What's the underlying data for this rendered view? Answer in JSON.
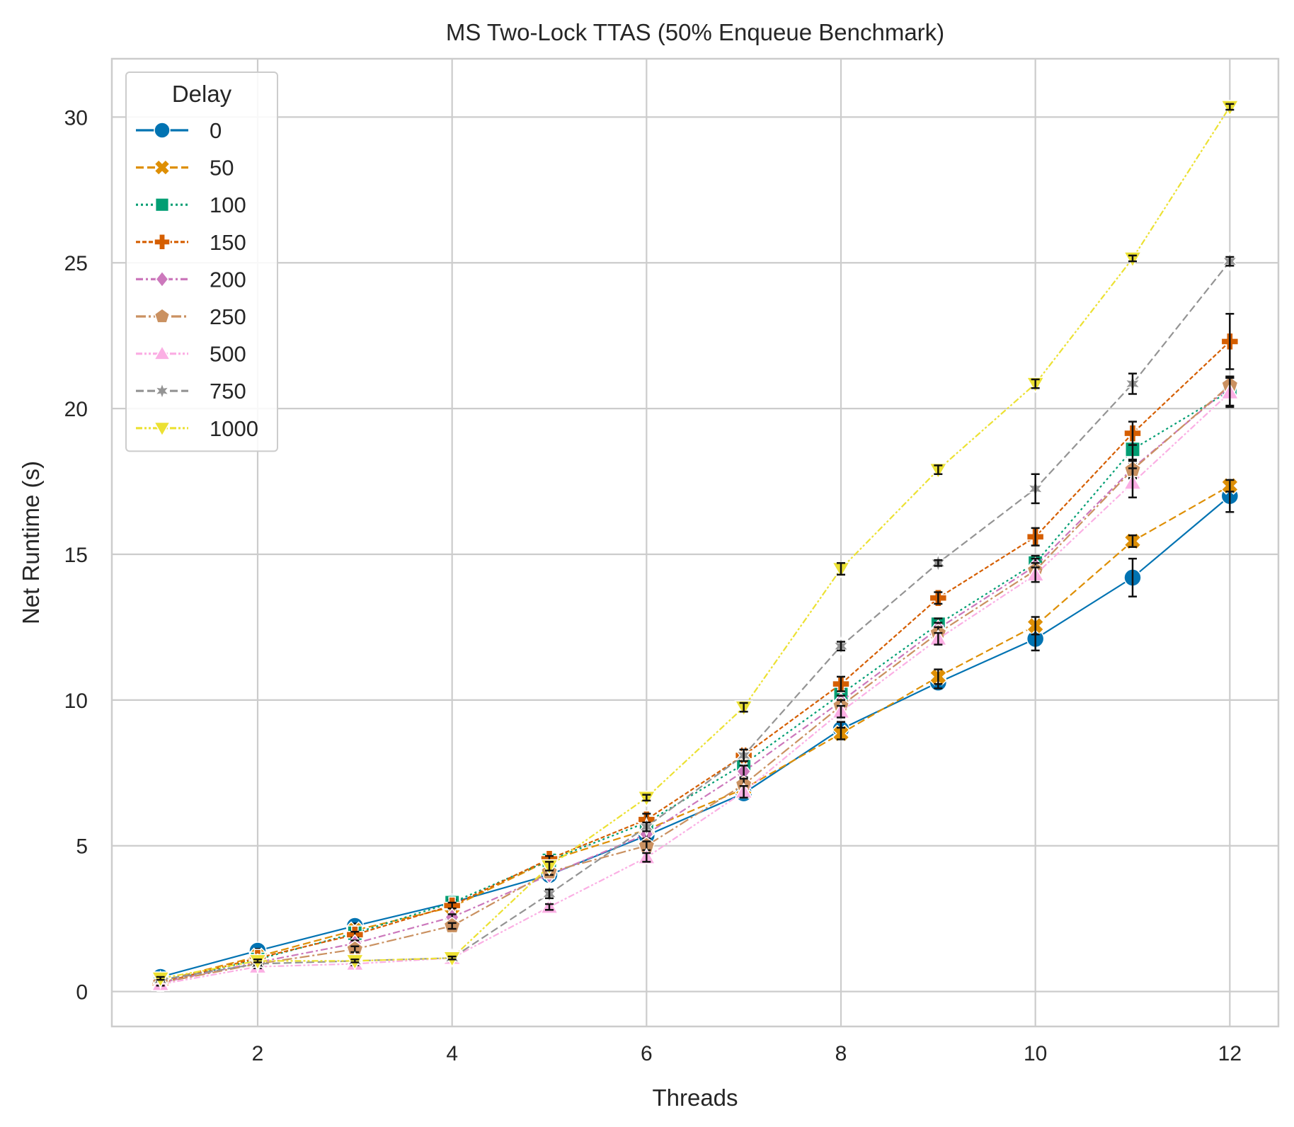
{
  "chart_data": {
    "type": "line",
    "title": "MS Two-Lock TTAS (50% Enqueue Benchmark)",
    "xlabel": "Threads",
    "ylabel": "Net Runtime (s)",
    "xlim": [
      0.5,
      12.5
    ],
    "ylim": [
      -1.2,
      32
    ],
    "xticks": [
      2,
      4,
      6,
      8,
      10,
      12
    ],
    "yticks": [
      0,
      5,
      10,
      15,
      20,
      25,
      30
    ],
    "grid": true,
    "legend": {
      "title": "Delay",
      "placement": "upper-left"
    },
    "x": [
      1,
      2,
      3,
      4,
      5,
      6,
      7,
      8,
      9,
      10,
      11,
      12
    ],
    "series": [
      {
        "name": "0",
        "color": "#0173b2",
        "marker": "circle",
        "dash": "solid",
        "values": [
          0.5,
          1.4,
          2.25,
          3.05,
          4.0,
          5.35,
          6.8,
          9.0,
          10.6,
          12.1,
          14.2,
          17.0
        ],
        "errors": [
          0.05,
          0.06,
          0.08,
          0.08,
          0.1,
          0.15,
          0.15,
          0.25,
          0.2,
          0.4,
          0.65,
          0.55
        ]
      },
      {
        "name": "50",
        "color": "#de8f05",
        "marker": "x",
        "dash": "dashed",
        "values": [
          0.35,
          1.2,
          2.1,
          2.9,
          4.5,
          5.55,
          6.95,
          8.85,
          10.8,
          12.55,
          15.45,
          17.35
        ],
        "errors": [
          0.05,
          0.05,
          0.08,
          0.1,
          0.1,
          0.15,
          0.2,
          0.2,
          0.25,
          0.3,
          0.2,
          0.2
        ]
      },
      {
        "name": "100",
        "color": "#029e73",
        "marker": "square",
        "dash": "dotted",
        "values": [
          0.3,
          1.1,
          2.0,
          3.05,
          4.5,
          5.8,
          7.8,
          10.2,
          12.6,
          14.7,
          18.6,
          20.6
        ],
        "errors": [
          0.05,
          0.05,
          0.08,
          0.1,
          0.1,
          0.15,
          0.15,
          0.2,
          0.2,
          0.25,
          0.5,
          0.5
        ]
      },
      {
        "name": "150",
        "color": "#d55e00",
        "marker": "plus",
        "dash": "densedash",
        "values": [
          0.3,
          1.15,
          1.95,
          2.95,
          4.55,
          5.9,
          8.1,
          10.55,
          13.5,
          15.6,
          19.15,
          22.3
        ],
        "errors": [
          0.05,
          0.05,
          0.1,
          0.1,
          0.1,
          0.2,
          0.2,
          0.25,
          0.2,
          0.3,
          0.4,
          0.95
        ]
      },
      {
        "name": "200",
        "color": "#cc78bc",
        "marker": "diamond",
        "dash": "dashdot",
        "values": [
          0.3,
          1.0,
          1.65,
          2.55,
          4.0,
          5.4,
          7.55,
          9.95,
          12.45,
          14.6,
          17.95,
          20.75
        ],
        "errors": [
          0.05,
          0.05,
          0.1,
          0.1,
          0.1,
          0.15,
          0.2,
          0.2,
          0.2,
          0.25,
          0.3,
          0.3
        ]
      },
      {
        "name": "250",
        "color": "#ca9161",
        "marker": "pentagon",
        "dash": "longdashdot",
        "values": [
          0.3,
          0.95,
          1.45,
          2.25,
          4.1,
          5.0,
          7.1,
          9.8,
          12.3,
          14.45,
          17.9,
          20.8
        ],
        "errors": [
          0.05,
          0.05,
          0.1,
          0.1,
          0.1,
          0.15,
          0.2,
          0.2,
          0.2,
          0.25,
          0.3,
          0.3
        ]
      },
      {
        "name": "500",
        "color": "#fbafe4",
        "marker": "triangle-up",
        "dash": "dashdotdot",
        "values": [
          0.25,
          0.85,
          0.95,
          1.15,
          2.9,
          4.6,
          6.85,
          9.6,
          12.1,
          14.3,
          17.45,
          20.55
        ],
        "errors": [
          0.05,
          0.05,
          0.05,
          0.05,
          0.1,
          0.15,
          0.2,
          0.2,
          0.2,
          0.25,
          0.5,
          0.5
        ]
      },
      {
        "name": "750",
        "color": "#949494",
        "marker": "star",
        "dash": "dashed",
        "values": [
          0.4,
          0.95,
          1.05,
          1.15,
          3.35,
          5.65,
          8.1,
          11.85,
          14.7,
          17.25,
          20.85,
          25.05
        ],
        "errors": [
          0.05,
          0.05,
          0.05,
          0.05,
          0.15,
          0.15,
          0.2,
          0.15,
          0.1,
          0.5,
          0.35,
          0.15
        ]
      },
      {
        "name": "1000",
        "color": "#ece133",
        "marker": "triangle-down",
        "dash": "dashdotdot",
        "values": [
          0.45,
          1.05,
          1.05,
          1.15,
          4.3,
          6.65,
          9.75,
          14.5,
          17.9,
          20.85,
          25.15,
          30.35
        ],
        "errors": [
          0.05,
          0.05,
          0.05,
          0.05,
          0.15,
          0.1,
          0.15,
          0.2,
          0.15,
          0.15,
          0.1,
          0.1
        ]
      }
    ]
  }
}
